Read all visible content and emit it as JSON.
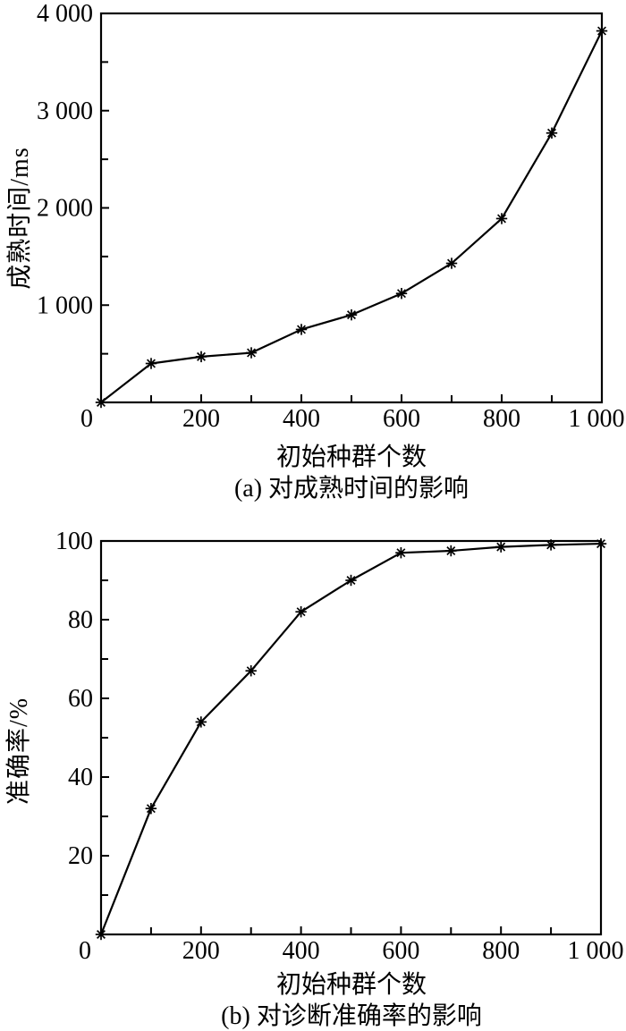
{
  "page_background": "#ffffff",
  "ink_color": "#000000",
  "chart_data": [
    {
      "id": "a",
      "type": "line",
      "caption": "(a) 对成熟时间的影响",
      "xlabel": "初始种群个数",
      "ylabel": "成熟时间/ms",
      "xlim": [
        0,
        1000
      ],
      "ylim": [
        0,
        4000
      ],
      "grid": false,
      "legend": null,
      "marker": "asterisk",
      "line_color": "#000000",
      "x": [
        0,
        100,
        200,
        300,
        400,
        500,
        600,
        700,
        800,
        900,
        1000
      ],
      "series": [
        {
          "name": "成熟时间",
          "values": [
            0,
            400,
            470,
            510,
            750,
            900,
            1120,
            1430,
            1890,
            2770,
            3820
          ]
        }
      ],
      "x_ticks": [
        {
          "v": 0,
          "label": "0",
          "dx": -16
        },
        {
          "v": 200,
          "label": "200"
        },
        {
          "v": 400,
          "label": "400"
        },
        {
          "v": 600,
          "label": "600"
        },
        {
          "v": 800,
          "label": "800"
        },
        {
          "v": 1000,
          "label": "1 000",
          "dx": -6
        }
      ],
      "x_minor_ticks": [
        100,
        300,
        500,
        700,
        900
      ],
      "y_ticks": [
        {
          "v": 1000,
          "label": "1 000"
        },
        {
          "v": 2000,
          "label": "2 000"
        },
        {
          "v": 3000,
          "label": "3 000"
        },
        {
          "v": 4000,
          "label": "4 000"
        }
      ],
      "y_minor_ticks": [
        500,
        1500,
        2500,
        3500
      ]
    },
    {
      "id": "b",
      "type": "line",
      "caption": "(b) 对诊断准确率的影响",
      "xlabel": "初始种群个数",
      "ylabel": "准确率/%",
      "xlim": [
        0,
        1000
      ],
      "ylim": [
        0,
        100
      ],
      "grid": false,
      "legend": null,
      "marker": "asterisk",
      "line_color": "#000000",
      "x": [
        0,
        100,
        200,
        300,
        400,
        500,
        600,
        700,
        800,
        900,
        1000
      ],
      "series": [
        {
          "name": "准确率",
          "values": [
            0,
            32,
            54,
            67,
            82,
            90,
            97,
            97.5,
            98.5,
            99,
            99.3
          ]
        }
      ],
      "x_ticks": [
        {
          "v": 0,
          "label": "0",
          "dx": -18
        },
        {
          "v": 200,
          "label": "200"
        },
        {
          "v": 400,
          "label": "400"
        },
        {
          "v": 600,
          "label": "600"
        },
        {
          "v": 800,
          "label": "800"
        },
        {
          "v": 1000,
          "label": "1 000",
          "dx": -6
        }
      ],
      "x_minor_ticks": [
        100,
        300,
        500,
        700,
        900
      ],
      "y_ticks": [
        {
          "v": 20,
          "label": "20"
        },
        {
          "v": 40,
          "label": "40"
        },
        {
          "v": 60,
          "label": "60"
        },
        {
          "v": 80,
          "label": "80"
        },
        {
          "v": 100,
          "label": "100"
        }
      ],
      "y_minor_ticks": [
        10,
        30,
        50,
        70,
        90
      ]
    }
  ]
}
